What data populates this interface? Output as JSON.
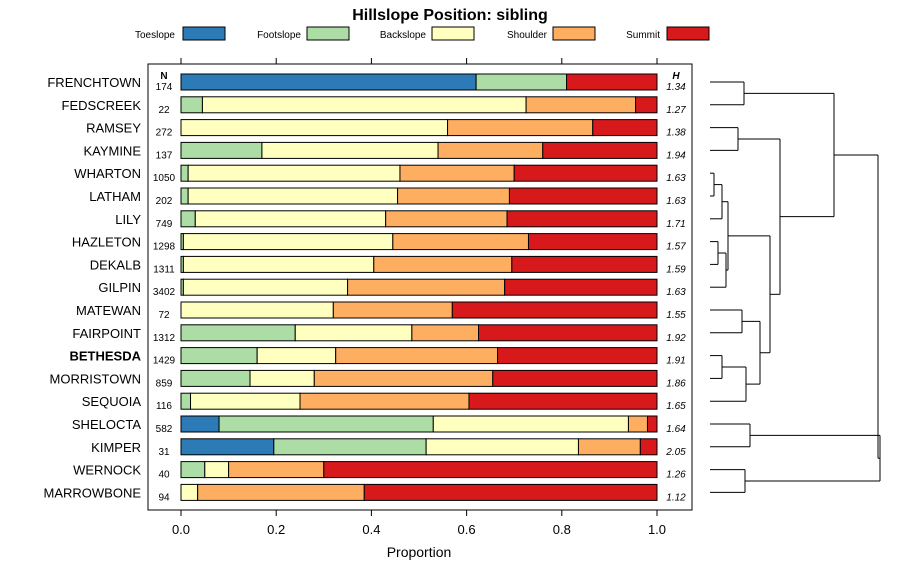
{
  "chart_data": {
    "type": "bar",
    "orientation": "horizontal",
    "stacked": true,
    "title": "Hillslope Position: sibling",
    "xlabel": "Proportion",
    "ylabel": "",
    "xlim": [
      0,
      1
    ],
    "xticks": [
      "0.0",
      "0.2",
      "0.4",
      "0.6",
      "0.8",
      "1.0"
    ],
    "legend_position": "top",
    "n_header": "N",
    "h_header": "H",
    "highlight": "BETHESDA",
    "colors": {
      "Toeslope": "#2c7bb6",
      "Footslope": "#abdda4",
      "Backslope": "#ffffbf",
      "Shoulder": "#fdae61",
      "Summit": "#d7191c"
    },
    "series_names": [
      "Toeslope",
      "Footslope",
      "Backslope",
      "Shoulder",
      "Summit"
    ],
    "rows": [
      {
        "label": "FRENCHTOWN",
        "n": "174",
        "h": "1.34",
        "values": [
          0.62,
          0.19,
          0.0,
          0.0,
          0.19
        ]
      },
      {
        "label": "FEDSCREEK",
        "n": "22",
        "h": "1.27",
        "values": [
          0.0,
          0.045,
          0.68,
          0.23,
          0.045
        ]
      },
      {
        "label": "RAMSEY",
        "n": "272",
        "h": "1.38",
        "values": [
          0.0,
          0.0,
          0.56,
          0.305,
          0.135
        ]
      },
      {
        "label": "KAYMINE",
        "n": "137",
        "h": "1.94",
        "values": [
          0.0,
          0.17,
          0.37,
          0.22,
          0.24
        ]
      },
      {
        "label": "WHARTON",
        "n": "1050",
        "h": "1.63",
        "values": [
          0.0,
          0.015,
          0.445,
          0.24,
          0.3
        ]
      },
      {
        "label": "LATHAM",
        "n": "202",
        "h": "1.63",
        "values": [
          0.0,
          0.015,
          0.44,
          0.235,
          0.31
        ]
      },
      {
        "label": "LILY",
        "n": "749",
        "h": "1.71",
        "values": [
          0.0,
          0.03,
          0.4,
          0.255,
          0.315
        ]
      },
      {
        "label": "HAZLETON",
        "n": "1298",
        "h": "1.57",
        "values": [
          0.0,
          0.005,
          0.44,
          0.285,
          0.27
        ]
      },
      {
        "label": "DEKALB",
        "n": "1311",
        "h": "1.59",
        "values": [
          0.0,
          0.005,
          0.4,
          0.29,
          0.305
        ]
      },
      {
        "label": "GILPIN",
        "n": "3402",
        "h": "1.63",
        "values": [
          0.0,
          0.005,
          0.345,
          0.33,
          0.32
        ]
      },
      {
        "label": "MATEWAN",
        "n": "72",
        "h": "1.55",
        "values": [
          0.0,
          0.0,
          0.32,
          0.25,
          0.43
        ]
      },
      {
        "label": "FAIRPOINT",
        "n": "1312",
        "h": "1.92",
        "values": [
          0.0,
          0.24,
          0.245,
          0.14,
          0.375
        ]
      },
      {
        "label": "BETHESDA",
        "n": "1429",
        "h": "1.91",
        "values": [
          0.0,
          0.16,
          0.165,
          0.34,
          0.335
        ]
      },
      {
        "label": "MORRISTOWN",
        "n": "859",
        "h": "1.86",
        "values": [
          0.0,
          0.145,
          0.135,
          0.375,
          0.345
        ]
      },
      {
        "label": "SEQUOIA",
        "n": "116",
        "h": "1.65",
        "values": [
          0.0,
          0.02,
          0.23,
          0.355,
          0.395
        ]
      },
      {
        "label": "SHELOCTA",
        "n": "582",
        "h": "1.64",
        "values": [
          0.08,
          0.45,
          0.41,
          0.04,
          0.02
        ]
      },
      {
        "label": "KIMPER",
        "n": "31",
        "h": "2.05",
        "values": [
          0.195,
          0.32,
          0.32,
          0.13,
          0.035
        ]
      },
      {
        "label": "WERNOCK",
        "n": "40",
        "h": "1.26",
        "values": [
          0.0,
          0.05,
          0.05,
          0.2,
          0.7
        ]
      },
      {
        "label": "MARROWBONE",
        "n": "94",
        "h": "1.12",
        "values": [
          0.0,
          0.0,
          0.035,
          0.35,
          0.615
        ]
      }
    ]
  }
}
